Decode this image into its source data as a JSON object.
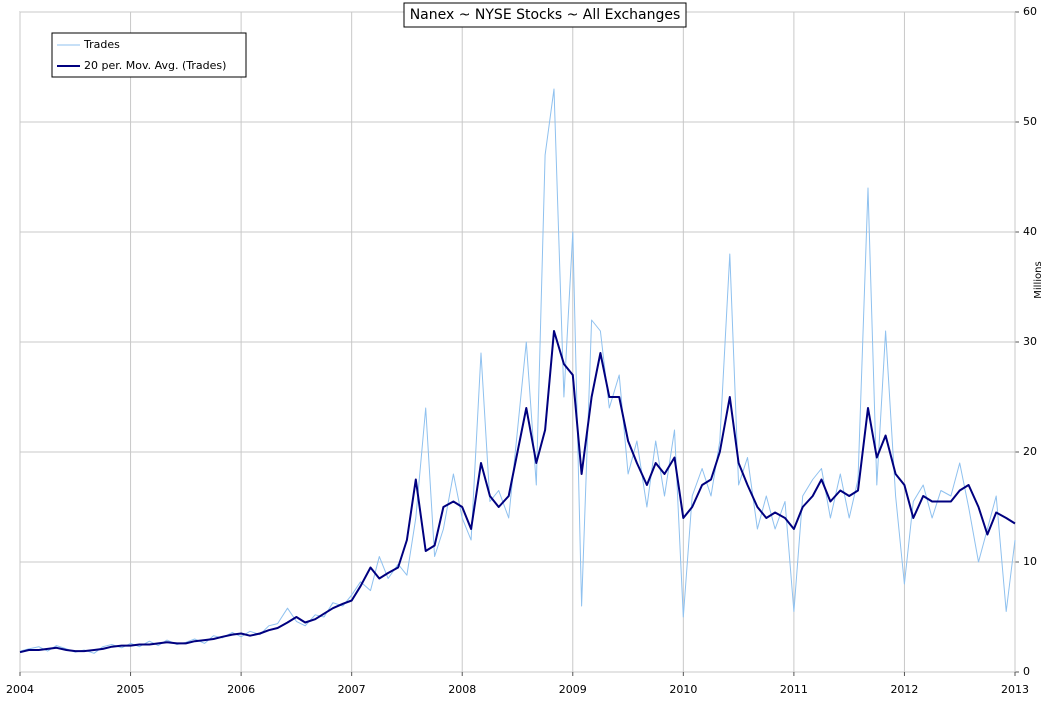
{
  "chart_data": {
    "type": "line",
    "title": "Nanex ~ NYSE Stocks ~ All Exchanges",
    "y_label": "Millions",
    "x": [
      2004,
      2004.08,
      2004.17,
      2004.25,
      2004.33,
      2004.42,
      2004.5,
      2004.58,
      2004.67,
      2004.75,
      2004.83,
      2004.92,
      2005,
      2005.08,
      2005.17,
      2005.25,
      2005.33,
      2005.42,
      2005.5,
      2005.58,
      2005.67,
      2005.75,
      2005.83,
      2005.92,
      2006,
      2006.08,
      2006.17,
      2006.25,
      2006.33,
      2006.42,
      2006.5,
      2006.58,
      2006.67,
      2006.75,
      2006.83,
      2006.92,
      2007,
      2007.08,
      2007.17,
      2007.25,
      2007.33,
      2007.42,
      2007.5,
      2007.58,
      2007.67,
      2007.75,
      2007.83,
      2007.92,
      2008,
      2008.08,
      2008.17,
      2008.25,
      2008.33,
      2008.42,
      2008.5,
      2008.58,
      2008.67,
      2008.75,
      2008.83,
      2008.92,
      2009,
      2009.08,
      2009.17,
      2009.25,
      2009.33,
      2009.42,
      2009.5,
      2009.58,
      2009.67,
      2009.75,
      2009.83,
      2009.92,
      2010,
      2010.08,
      2010.17,
      2010.25,
      2010.33,
      2010.42,
      2010.5,
      2010.58,
      2010.67,
      2010.75,
      2010.83,
      2010.92,
      2011,
      2011.08,
      2011.17,
      2011.25,
      2011.33,
      2011.42,
      2011.5,
      2011.58,
      2011.67,
      2011.75,
      2011.83,
      2011.92,
      2012,
      2012.08,
      2012.17,
      2012.25,
      2012.33,
      2012.42,
      2012.5,
      2012.58,
      2012.67,
      2012.75,
      2012.83,
      2012.92,
      2013
    ],
    "series": [
      {
        "name": "Trades",
        "color": "#8fc1ef",
        "width": 1,
        "values": [
          1.9,
          2.1,
          2.3,
          1.9,
          2.4,
          2.1,
          1.8,
          2.0,
          1.7,
          2.3,
          2.5,
          2.2,
          2.6,
          2.3,
          2.8,
          2.4,
          2.9,
          2.5,
          2.7,
          3.0,
          2.6,
          3.3,
          3.1,
          3.6,
          3.2,
          3.7,
          3.4,
          4.2,
          4.4,
          5.8,
          4.6,
          4.2,
          5.2,
          5.0,
          6.3,
          6.0,
          7.0,
          8.2,
          7.4,
          10.5,
          8.5,
          9.8,
          8.8,
          14.0,
          24.0,
          10.5,
          13.0,
          18.0,
          14.0,
          12.0,
          29.0,
          15.5,
          16.5,
          14.0,
          22.0,
          30.0,
          17.0,
          47.0,
          53.0,
          25.0,
          40.0,
          6.0,
          32.0,
          31.0,
          24.0,
          27.0,
          18.0,
          21.0,
          15.0,
          21.0,
          16.0,
          22.0,
          5.0,
          16.0,
          18.5,
          16.0,
          21.0,
          38.0,
          17.0,
          19.5,
          13.0,
          16.0,
          13.0,
          15.5,
          5.5,
          16.0,
          17.5,
          18.5,
          14.0,
          18.0,
          14.0,
          17.5,
          44.0,
          17.0,
          31.0,
          16.0,
          8.0,
          15.5,
          17.0,
          14.0,
          16.5,
          16.0,
          19.0,
          15.0,
          10.0,
          13.0,
          16.0,
          5.5,
          12.0
        ]
      },
      {
        "name": "20 per. Mov. Avg. (Trades)",
        "color": "#00007f",
        "width": 2,
        "values": [
          1.8,
          2.0,
          2.0,
          2.1,
          2.2,
          2.0,
          1.9,
          1.9,
          2.0,
          2.1,
          2.3,
          2.4,
          2.4,
          2.5,
          2.5,
          2.6,
          2.7,
          2.6,
          2.6,
          2.8,
          2.9,
          3.0,
          3.2,
          3.4,
          3.5,
          3.3,
          3.5,
          3.8,
          4.0,
          4.5,
          5.0,
          4.5,
          4.8,
          5.3,
          5.8,
          6.2,
          6.5,
          7.8,
          9.5,
          8.5,
          9.0,
          9.5,
          12.0,
          17.5,
          11.0,
          11.5,
          15.0,
          15.5,
          15,
          13,
          19,
          16,
          15,
          16,
          20,
          24,
          19,
          22,
          31,
          28,
          27,
          18,
          25,
          29,
          25,
          25,
          21,
          19,
          17,
          19,
          18,
          19.5,
          14,
          15,
          17,
          17.5,
          20,
          25,
          19,
          17,
          15,
          14,
          14.5,
          14,
          13,
          15,
          16,
          17.5,
          15.5,
          16.5,
          16,
          16.5,
          24,
          19.5,
          21.5,
          18,
          17,
          14,
          16,
          15.5,
          15.5,
          15.5,
          16.5,
          17,
          15,
          12.5,
          14.5,
          14,
          13.5
        ]
      }
    ],
    "xlim": [
      2004,
      2013
    ],
    "xticks": [
      2004,
      2005,
      2006,
      2007,
      2008,
      2009,
      2010,
      2011,
      2012,
      2013
    ],
    "ylim": [
      0,
      60
    ],
    "yticks": [
      0,
      10,
      20,
      30,
      40,
      50,
      60
    ],
    "y_axis_side": "right",
    "grid": true,
    "legend": "upper left"
  }
}
